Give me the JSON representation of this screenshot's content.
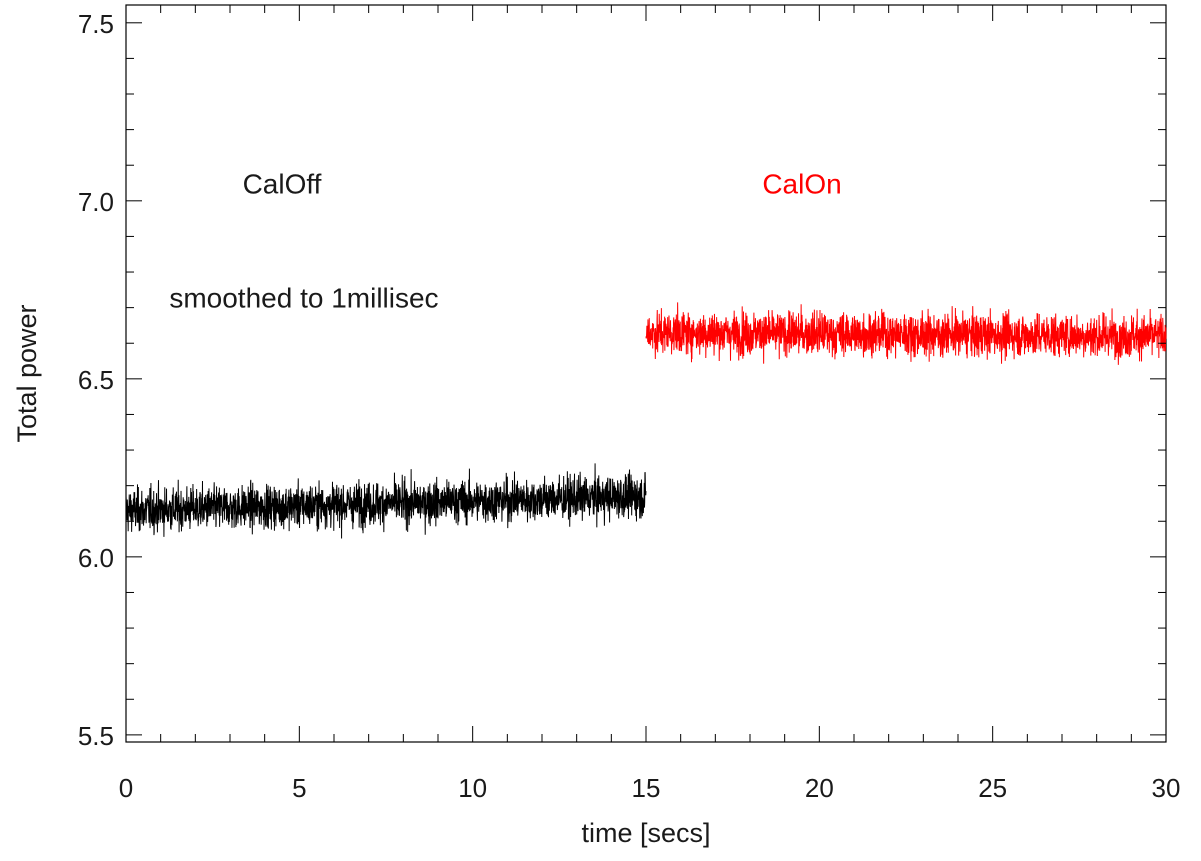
{
  "chart_data": {
    "type": "line",
    "title": "",
    "xlabel": "time [secs]",
    "ylabel": "Total power",
    "xlim": [
      0,
      30
    ],
    "ylim": [
      5.48,
      7.55
    ],
    "x_ticks": [
      0,
      5,
      10,
      15,
      20,
      25,
      30
    ],
    "x_tick_labels": [
      "0",
      "5",
      "10",
      "15",
      "20",
      "25",
      "30"
    ],
    "x_minor_step": 1,
    "y_ticks": [
      5.5,
      6.0,
      6.5,
      7.0,
      7.5
    ],
    "y_tick_labels": [
      "5.5",
      "6.0",
      "6.5",
      "7.0",
      "7.5"
    ],
    "y_minor_step": 0.1,
    "grid": false,
    "series": [
      {
        "color": "#000000",
        "x_range": [
          0,
          15
        ],
        "mean_start": 6.13,
        "mean_end": 6.17,
        "noise_sd": 0.03,
        "min": 6.02,
        "max": 6.29
      },
      {
        "color": "#ff0000",
        "x_range": [
          15,
          30
        ],
        "mean_start": 6.63,
        "mean_end": 6.62,
        "noise_sd": 0.03,
        "min": 6.51,
        "max": 6.75
      }
    ],
    "annotations": [
      {
        "text": "CalOff",
        "x": 4.5,
        "y": 7.02,
        "color": "#1a1a1a",
        "anchor": "middle"
      },
      {
        "text": "CalOn",
        "x": 19.5,
        "y": 7.02,
        "color": "#ff0000",
        "anchor": "middle"
      },
      {
        "text": "smoothed to 1millisec",
        "x": 1.25,
        "y": 6.7,
        "color": "#1a1a1a",
        "anchor": "start"
      }
    ]
  }
}
